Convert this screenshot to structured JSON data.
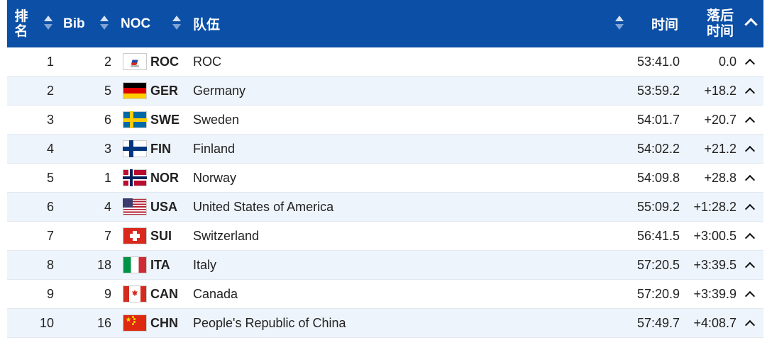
{
  "header": {
    "rank_line1": "排",
    "rank_line2": "名",
    "bib": "Bib",
    "noc": "NOC",
    "team": "队伍",
    "time": "时间",
    "behind_line1": "落后",
    "behind_line2": "时间"
  },
  "colors": {
    "header_bg": "#0b4fa6",
    "alt_row_bg": "#eef4fb"
  },
  "rows": [
    {
      "rank": "1",
      "bib": "2",
      "noc": "ROC",
      "flag": "roc-flag-icon",
      "team": "ROC",
      "time": "53:41.0",
      "behind": "0.0"
    },
    {
      "rank": "2",
      "bib": "5",
      "noc": "GER",
      "flag": "germany-flag-icon",
      "team": "Germany",
      "time": "53:59.2",
      "behind": "+18.2"
    },
    {
      "rank": "3",
      "bib": "6",
      "noc": "SWE",
      "flag": "sweden-flag-icon",
      "team": "Sweden",
      "time": "54:01.7",
      "behind": "+20.7"
    },
    {
      "rank": "4",
      "bib": "3",
      "noc": "FIN",
      "flag": "finland-flag-icon",
      "team": "Finland",
      "time": "54:02.2",
      "behind": "+21.2"
    },
    {
      "rank": "5",
      "bib": "1",
      "noc": "NOR",
      "flag": "norway-flag-icon",
      "team": "Norway",
      "time": "54:09.8",
      "behind": "+28.8"
    },
    {
      "rank": "6",
      "bib": "4",
      "noc": "USA",
      "flag": "usa-flag-icon",
      "team": "United States of America",
      "time": "55:09.2",
      "behind": "+1:28.2"
    },
    {
      "rank": "7",
      "bib": "7",
      "noc": "SUI",
      "flag": "switzerland-flag-icon",
      "team": "Switzerland",
      "time": "56:41.5",
      "behind": "+3:00.5"
    },
    {
      "rank": "8",
      "bib": "18",
      "noc": "ITA",
      "flag": "italy-flag-icon",
      "team": "Italy",
      "time": "57:20.5",
      "behind": "+3:39.5"
    },
    {
      "rank": "9",
      "bib": "9",
      "noc": "CAN",
      "flag": "canada-flag-icon",
      "team": "Canada",
      "time": "57:20.9",
      "behind": "+3:39.9"
    },
    {
      "rank": "10",
      "bib": "16",
      "noc": "CHN",
      "flag": "china-flag-icon",
      "team": "People's Republic of China",
      "time": "57:49.7",
      "behind": "+4:08.7"
    }
  ]
}
